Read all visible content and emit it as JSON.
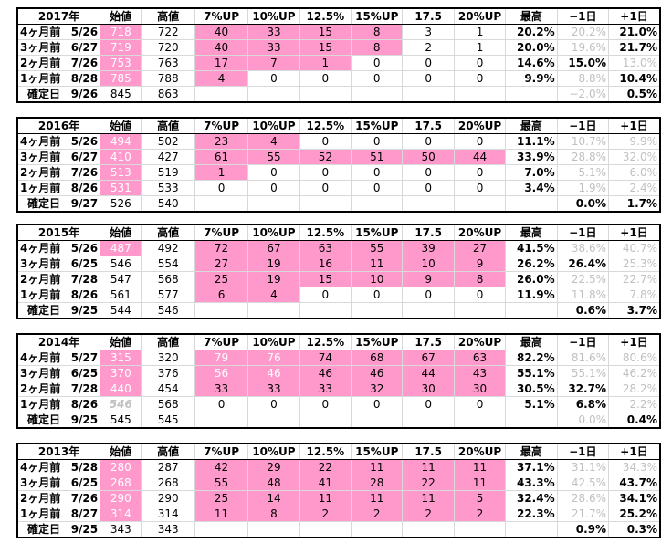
{
  "headers": [
    "始値",
    "高値",
    "7%UP",
    "10%UP",
    "12.5%",
    "15%UP",
    "17.5",
    "20%UP",
    "最高",
    "−1日",
    "+1日"
  ],
  "blocks": [
    {
      "year": "2017年",
      "rows": [
        {
          "label": "4ヶ月前",
          "date": "5/26",
          "start": "718",
          "high": "722",
          "c7": "40",
          "c10": "33",
          "c125": "15",
          "c15": "8",
          "c175": "3",
          "c20": "1",
          "max": "20.2%",
          "m1": "20.2%",
          "p1": "21.0%"
        },
        {
          "label": "3ヶ月前",
          "date": "6/27",
          "start": "719",
          "high": "720",
          "c7": "40",
          "c10": "33",
          "c125": "15",
          "c15": "8",
          "c175": "2",
          "c20": "1",
          "max": "20.0%",
          "m1": "19.6%",
          "p1": "21.7%"
        },
        {
          "label": "2ヶ月前",
          "date": "7/26",
          "start": "753",
          "high": "763",
          "c7": "17",
          "c10": "7",
          "c125": "1",
          "c15": "0",
          "c175": "0",
          "c20": "0",
          "max": "14.6%",
          "m1": "15.0%",
          "p1": "13.0%"
        },
        {
          "label": "1ヶ月前",
          "date": "8/28",
          "start": "785",
          "high": "788",
          "c7": "4",
          "c10": "0",
          "c125": "0",
          "c15": "0",
          "c175": "0",
          "c20": "0",
          "max": "9.9%",
          "m1": "8.8%",
          "p1": "10.4%"
        }
      ],
      "final": {
        "label": "確定日",
        "date": "9/26",
        "start": "845",
        "high": "863",
        "m1": "−2.0%",
        "p1": "0.5%"
      }
    },
    {
      "year": "2016年",
      "rows": [
        {
          "label": "4ヶ月前",
          "date": "5/26",
          "start": "494",
          "high": "502",
          "c7": "23",
          "c10": "4",
          "c125": "0",
          "c15": "0",
          "c175": "0",
          "c20": "0",
          "max": "11.1%",
          "m1": "10.7%",
          "p1": "9.9%"
        },
        {
          "label": "3ヶ月前",
          "date": "6/27",
          "start": "410",
          "high": "427",
          "c7": "61",
          "c10": "55",
          "c125": "52",
          "c15": "51",
          "c175": "50",
          "c20": "44",
          "max": "33.9%",
          "m1": "28.8%",
          "p1": "32.0%"
        },
        {
          "label": "2ヶ月前",
          "date": "7/26",
          "start": "513",
          "high": "519",
          "c7": "1",
          "c10": "0",
          "c125": "0",
          "c15": "0",
          "c175": "0",
          "c20": "0",
          "max": "7.0%",
          "m1": "5.1%",
          "p1": "6.0%"
        },
        {
          "label": "1ヶ月前",
          "date": "8/26",
          "start": "531",
          "high": "533",
          "c7": "0",
          "c10": "0",
          "c125": "0",
          "c15": "0",
          "c175": "0",
          "c20": "0",
          "max": "3.4%",
          "m1": "1.9%",
          "p1": "2.4%"
        }
      ],
      "final": {
        "label": "確定日",
        "date": "9/27",
        "start": "526",
        "high": "540",
        "m1": "0.0%",
        "p1": "1.7%"
      }
    },
    {
      "year": "2015年",
      "rows": [
        {
          "label": "4ヶ月前",
          "date": "5/26",
          "start": "487",
          "high": "492",
          "c7": "72",
          "c10": "67",
          "c125": "63",
          "c15": "55",
          "c175": "39",
          "c20": "27",
          "max": "41.5%",
          "m1": "38.6%",
          "p1": "40.7%"
        },
        {
          "label": "3ヶ月前",
          "date": "6/25",
          "start": "546",
          "high": "554",
          "c7": "27",
          "c10": "19",
          "c125": "16",
          "c15": "11",
          "c175": "10",
          "c20": "9",
          "max": "26.2%",
          "m1": "26.4%",
          "p1": "25.3%"
        },
        {
          "label": "2ヶ月前",
          "date": "7/28",
          "start": "547",
          "high": "568",
          "c7": "25",
          "c10": "19",
          "c125": "15",
          "c15": "10",
          "c175": "9",
          "c20": "8",
          "max": "26.0%",
          "m1": "22.5%",
          "p1": "22.7%"
        },
        {
          "label": "1ヶ月前",
          "date": "8/26",
          "start": "561",
          "high": "577",
          "c7": "6",
          "c10": "4",
          "c125": "0",
          "c15": "0",
          "c175": "0",
          "c20": "0",
          "max": "11.9%",
          "m1": "11.8%",
          "p1": "7.8%"
        }
      ],
      "final": {
        "label": "確定日",
        "date": "9/25",
        "start": "544",
        "high": "546",
        "m1": "0.6%",
        "p1": "3.7%"
      }
    },
    {
      "year": "2014年",
      "rows": [
        {
          "label": "4ヶ月前",
          "date": "5/27",
          "start": "315",
          "high": "320",
          "c7": "79",
          "c10": "76",
          "c125": "74",
          "c15": "68",
          "c175": "67",
          "c20": "63",
          "max": "82.2%",
          "m1": "81.6%",
          "p1": "80.6%"
        },
        {
          "label": "3ヶ月前",
          "date": "6/25",
          "start": "370",
          "high": "376",
          "c7": "56",
          "c10": "46",
          "c125": "46",
          "c15": "46",
          "c175": "44",
          "c20": "43",
          "max": "55.1%",
          "m1": "55.1%",
          "p1": "46.2%"
        },
        {
          "label": "2ヶ月前",
          "date": "7/28",
          "start": "440",
          "high": "454",
          "c7": "33",
          "c10": "33",
          "c125": "33",
          "c15": "32",
          "c175": "30",
          "c20": "30",
          "max": "30.5%",
          "m1": "32.7%",
          "p1": "28.2%"
        },
        {
          "label": "1ヶ月前",
          "date": "8/26",
          "start": "546",
          "high": "568",
          "c7": "0",
          "c10": "0",
          "c125": "0",
          "c15": "0",
          "c175": "0",
          "c20": "0",
          "max": "5.1%",
          "m1": "6.8%",
          "p1": "2.2%"
        }
      ],
      "final": {
        "label": "確定日",
        "date": "9/25",
        "start": "545",
        "high": "545",
        "m1": "0.0%",
        "p1": "0.4%"
      }
    },
    {
      "year": "2013年",
      "rows": [
        {
          "label": "4ヶ月前",
          "date": "5/28",
          "start": "280",
          "high": "287",
          "c7": "42",
          "c10": "29",
          "c125": "22",
          "c15": "11",
          "c175": "11",
          "c20": "11",
          "max": "37.1%",
          "m1": "31.1%",
          "p1": "34.3%"
        },
        {
          "label": "3ヶ月前",
          "date": "6/25",
          "start": "268",
          "high": "268",
          "c7": "55",
          "c10": "48",
          "c125": "41",
          "c15": "28",
          "c175": "22",
          "c20": "11",
          "max": "43.3%",
          "m1": "42.5%",
          "p1": "43.7%"
        },
        {
          "label": "2ヶ月前",
          "date": "7/26",
          "start": "290",
          "high": "290",
          "c7": "25",
          "c10": "14",
          "c125": "11",
          "c15": "11",
          "c175": "11",
          "c20": "5",
          "max": "32.4%",
          "m1": "28.6%",
          "p1": "34.1%"
        },
        {
          "label": "1ヶ月前",
          "date": "8/27",
          "start": "314",
          "high": "314",
          "c7": "11",
          "c10": "8",
          "c125": "2",
          "c15": "2",
          "c175": "2",
          "c20": "2",
          "max": "22.3%",
          "m1": "21.7%",
          "p1": "25.2%"
        }
      ],
      "final": {
        "label": "確定日",
        "date": "9/25",
        "start": "343",
        "high": "343",
        "m1": "0.9%",
        "p1": "0.3%"
      }
    }
  ],
  "style": {
    "highlight": "#ff99cc",
    "muted_text": "#c0c0c0",
    "highlighted_start_text": "#ffffff",
    "emphasis_cells": {
      "pink_start": [
        [
          0,
          1,
          2,
          3
        ],
        [
          0,
          1,
          2,
          3
        ],
        [
          0
        ],
        [
          0,
          1,
          2
        ],
        [
          0,
          1,
          2,
          3
        ]
      ],
      "pink_counts_upto": [
        [
          4,
          4,
          3,
          1
        ],
        [
          2,
          6,
          1,
          0
        ],
        [
          6,
          6,
          6,
          2
        ],
        [
          6,
          6,
          6,
          0
        ],
        [
          6,
          6,
          6,
          6
        ]
      ],
      "muted_start": [
        [],
        [],
        [],
        [
          3
        ],
        []
      ],
      "bold_m1": [
        [
          false,
          false,
          true,
          false
        ],
        [
          false,
          false,
          false,
          false
        ],
        [
          false,
          true,
          false,
          false
        ],
        [
          false,
          false,
          true,
          true
        ],
        [
          false,
          false,
          false,
          false
        ]
      ],
      "bold_p1": [
        [
          true,
          true,
          false,
          true
        ],
        [
          false,
          false,
          false,
          false
        ],
        [
          false,
          false,
          false,
          false
        ],
        [
          false,
          false,
          false,
          false
        ],
        [
          false,
          true,
          true,
          true
        ]
      ],
      "final_m1_muted": [
        true,
        false,
        false,
        true,
        false
      ]
    }
  }
}
